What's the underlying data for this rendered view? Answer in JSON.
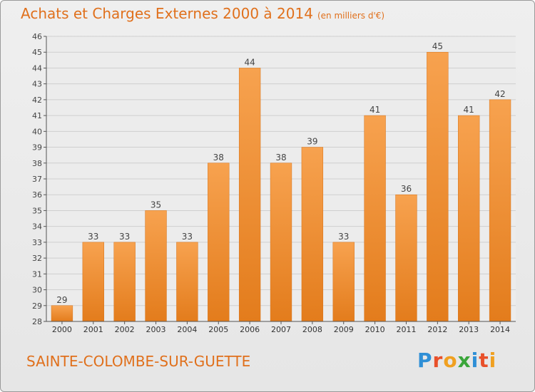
{
  "header": {
    "title": "Achats et Charges Externes 2000 à 2014",
    "unit": "(en milliers d'€)"
  },
  "footer": {
    "commune": "SAINTE-COLOMBE-SUR-GUETTE",
    "logo_letters": [
      "P",
      "r",
      "o",
      "x",
      "i",
      "t",
      "i"
    ],
    "logo_colors": [
      "#2f8fd6",
      "#e8502a",
      "#f0a020",
      "#3aa63a",
      "#2f8fd6",
      "#e8502a",
      "#f0a020"
    ]
  },
  "chart_data": {
    "type": "bar",
    "title": "Achats et Charges Externes 2000 à 2014",
    "categories": [
      "2000",
      "2001",
      "2002",
      "2003",
      "2004",
      "2005",
      "2006",
      "2007",
      "2008",
      "2009",
      "2010",
      "2011",
      "2012",
      "2013",
      "2014"
    ],
    "values": [
      29,
      33,
      33,
      35,
      33,
      38,
      44,
      38,
      39,
      33,
      41,
      36,
      45,
      41,
      42
    ],
    "ylim": [
      28,
      46
    ],
    "yticks": [
      28,
      29,
      30,
      31,
      32,
      33,
      34,
      35,
      36,
      37,
      38,
      39,
      40,
      41,
      42,
      43,
      44,
      45,
      46
    ],
    "grid": true,
    "bar_color_top": "#f7a24f",
    "bar_color_bottom": "#e37c1c"
  }
}
